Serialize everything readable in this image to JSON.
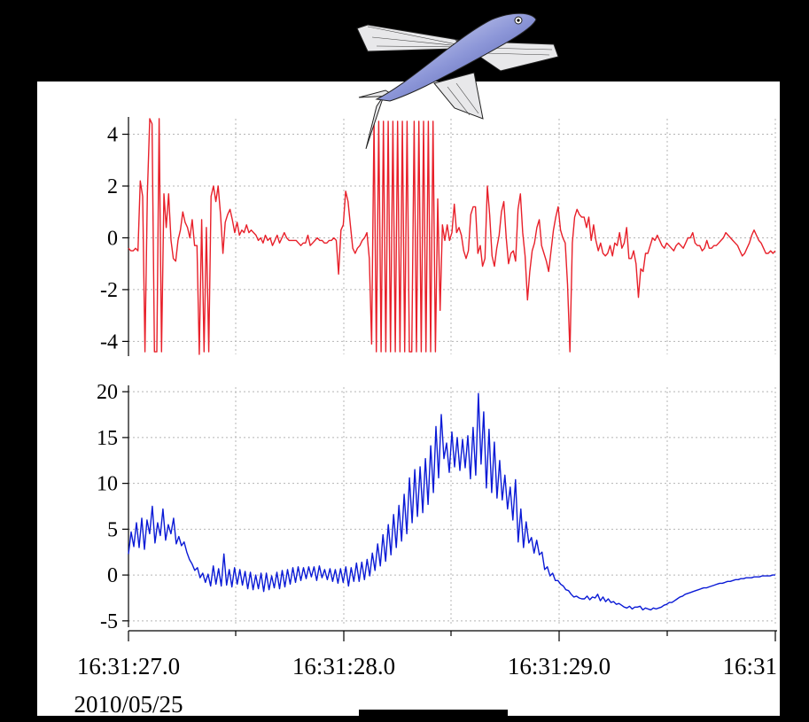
{
  "chart_data": [
    {
      "type": "line",
      "ylim": [
        -4.5,
        4.6
      ],
      "yticks": [
        "4",
        "2",
        "0",
        "-2",
        "-4"
      ],
      "ytick_values": [
        4,
        2,
        0,
        -2,
        -4
      ],
      "grid": true,
      "color": "#e8202a",
      "series": [
        {
          "values": [
            -0.4,
            -0.5,
            -0.5,
            -0.4,
            -0.5,
            2.2,
            1.6,
            -4.4,
            1.7,
            4.6,
            4.4,
            -4.4,
            -4.4,
            4.6,
            -4.4,
            1.7,
            0.4,
            1.7,
            -0.1,
            -0.8,
            -0.9,
            -0.1,
            0.3,
            1.0,
            0.6,
            0.4,
            0.0,
            0.7,
            -0.3,
            -0.3,
            -4.5,
            0.7,
            -4.4,
            0.4,
            -4.4,
            1.6,
            2.0,
            1.4,
            2.0,
            0.9,
            -0.6,
            0.6,
            0.9,
            1.1,
            0.7,
            0.2,
            0.6,
            0.1,
            0.3,
            0.2,
            0.5,
            0.2,
            0.3,
            0.2,
            0.1,
            -0.1,
            0.0,
            -0.2,
            0.1,
            -0.1,
            0.0,
            -0.3,
            -0.1,
            0.1,
            -0.2,
            0.0,
            0.2,
            0.0,
            -0.1,
            -0.1,
            -0.1,
            -0.1,
            -0.2,
            -0.3,
            -0.2,
            -0.2,
            0.1,
            -0.3,
            -0.2,
            -0.1,
            0.0,
            -0.1,
            -0.1,
            -0.2,
            -0.2,
            -0.1,
            -0.1,
            0.0,
            -0.1,
            -1.4,
            0.3,
            0.5,
            1.8,
            1.4,
            0.5,
            -0.4,
            -0.6,
            -0.4,
            -0.3,
            -0.1,
            0.0,
            0.2,
            -0.8,
            -4.1,
            4.5,
            -4.4,
            4.5,
            -4.4,
            4.5,
            -4.4,
            4.5,
            -4.4,
            4.5,
            -4.4,
            4.5,
            -4.4,
            4.5,
            -4.4,
            4.5,
            -4.4,
            -4.4,
            4.5,
            -4.4,
            4.5,
            -4.4,
            4.5,
            -4.4,
            4.5,
            -4.4,
            4.5,
            -4.4,
            1.5,
            -2.8,
            0.5,
            -0.1,
            0.5,
            -0.1,
            0.2,
            1.3,
            0.2,
            0.4,
            0.1,
            -0.5,
            -0.8,
            -0.5,
            0.9,
            1.2,
            1.2,
            -0.6,
            -0.3,
            -1.1,
            -0.8,
            2.0,
            0.9,
            -0.7,
            -1.1,
            -0.4,
            0.1,
            1.0,
            1.4,
            0.0,
            -1.0,
            -0.6,
            -0.5,
            -0.9,
            1.1,
            1.7,
            0.2,
            -0.7,
            -2.4,
            -1.3,
            -0.5,
            -0.2,
            0.4,
            0.7,
            -0.3,
            -0.6,
            -0.9,
            -1.3,
            -0.5,
            0.3,
            0.8,
            1.2,
            0.3,
            0.0,
            -0.2,
            -1.8,
            -4.4,
            -0.2,
            0.8,
            1.1,
            0.9,
            0.8,
            0.8,
            0.4,
            0.8,
            -0.1,
            0.5,
            -0.1,
            -0.5,
            -0.2,
            -0.6,
            -0.7,
            -0.6,
            -0.3,
            -0.7,
            -0.2,
            -0.3,
            0.2,
            -0.4,
            -0.2,
            0.4,
            -0.8,
            -0.8,
            -0.5,
            -1.0,
            -2.3,
            -1.2,
            -1.3,
            -0.6,
            -0.6,
            -0.3,
            0.0,
            -0.1,
            0.1,
            -0.1,
            -0.3,
            -0.4,
            -0.2,
            -0.3,
            -0.4,
            -0.5,
            -0.3,
            -0.2,
            -0.3,
            -0.4,
            -0.2,
            0.0,
            0.0,
            0.2,
            -0.2,
            -0.3,
            -0.3,
            -0.5,
            -0.4,
            -0.1,
            -0.4,
            -0.4,
            -0.3,
            -0.3,
            -0.2,
            -0.1,
            0.0,
            0.2,
            0.1,
            0.0,
            -0.1,
            -0.2,
            -0.3,
            -0.5,
            -0.7,
            -0.6,
            -0.4,
            -0.2,
            0.1,
            0.3,
            0.1,
            -0.1,
            -0.2,
            -0.4,
            -0.6,
            -0.6,
            -0.5,
            -0.6,
            -0.5
          ]
        }
      ]
    },
    {
      "type": "line",
      "ylim": [
        -5.5,
        20.5
      ],
      "yticks": [
        "20",
        "15",
        "10",
        "5",
        "0",
        "-5"
      ],
      "ytick_values": [
        20,
        15,
        10,
        5,
        0,
        -5
      ],
      "grid": true,
      "color": "#0a1ad6",
      "xticks": [
        "16:31:27.0",
        "16:31:28.0",
        "16:31:29.0",
        "16:31"
      ],
      "xtick_values": [
        0,
        1,
        2,
        3
      ],
      "xlim": [
        0,
        3
      ],
      "x_sublabel": "2010/05/25",
      "series": [
        {
          "values": [
            2.3,
            4.7,
            3.1,
            5.7,
            3.0,
            6.2,
            2.8,
            6.0,
            4.5,
            7.5,
            3.5,
            5.7,
            4.3,
            7.2,
            3.8,
            5.5,
            4.5,
            6.2,
            3.4,
            4.2,
            3.2,
            3.6,
            2.5,
            1.7,
            1.2,
            0.5,
            0.8,
            -0.3,
            0.2,
            -0.8,
            0.1,
            -1.2,
            1.0,
            -1.0,
            0.7,
            -1.2,
            2.3,
            -1.1,
            0.6,
            -1.3,
            0.8,
            -1.0,
            0.6,
            -1.1,
            0.4,
            -1.5,
            0.3,
            -1.6,
            0.0,
            -1.5,
            0.2,
            -1.8,
            0.2,
            -1.6,
            -0.1,
            -1.4,
            0.3,
            -1.5,
            0.5,
            -1.3,
            0.6,
            -1.0,
            0.8,
            -0.8,
            0.9,
            -0.6,
            0.8,
            -0.4,
            0.9,
            -0.2,
            0.9,
            -0.6,
            1.0,
            -0.3,
            0.6,
            -0.5,
            0.7,
            -0.7,
            0.6,
            -0.9,
            0.7,
            -0.8,
            0.9,
            -1.2,
            0.8,
            -0.7,
            1.3,
            -0.7,
            1.4,
            -0.5,
            1.7,
            -0.1,
            2.4,
            0.5,
            3.4,
            1.0,
            4.4,
            1.5,
            5.5,
            2.2,
            6.6,
            3.0,
            7.6,
            3.7,
            8.8,
            4.5,
            10.6,
            5.7,
            11.5,
            6.4,
            11.8,
            6.8,
            12.7,
            7.7,
            14.1,
            9.0,
            16.2,
            10.6,
            17.5,
            12.7,
            14.4,
            11.2,
            15.6,
            11.8,
            15.0,
            11.4,
            14.8,
            11.7,
            15.2,
            10.5,
            16.1,
            10.9,
            19.8,
            12.1,
            17.8,
            9.5,
            15.9,
            9.0,
            14.5,
            8.4,
            12.5,
            8.2,
            10.9,
            7.2,
            9.6,
            6.0,
            10.4,
            3.6,
            7.2,
            3.0,
            5.8,
            3.5,
            4.1,
            2.4,
            3.8,
            2.2,
            2.5,
            0.6,
            0.9,
            -0.1,
            0.2,
            -0.6,
            -0.6,
            -1.0,
            -1.2,
            -1.6,
            -1.7,
            -2.1,
            -2.4,
            -2.3,
            -2.5,
            -2.6,
            -2.6,
            -2.3,
            -2.7,
            -2.4,
            -2.5,
            -2.1,
            -2.8,
            -2.4,
            -2.9,
            -2.6,
            -3.0,
            -2.9,
            -3.2,
            -3.1,
            -3.3,
            -3.5,
            -3.6,
            -3.4,
            -3.7,
            -3.5,
            -3.5,
            -3.4,
            -3.8,
            -3.6,
            -3.7,
            -3.8,
            -3.6,
            -3.7,
            -3.6,
            -3.5,
            -3.3,
            -3.2,
            -3.0,
            -3.0,
            -2.8,
            -2.6,
            -2.4,
            -2.3,
            -2.1,
            -2.0,
            -1.9,
            -1.8,
            -1.7,
            -1.6,
            -1.5,
            -1.4,
            -1.4,
            -1.3,
            -1.2,
            -1.1,
            -1.0,
            -0.9,
            -0.9,
            -0.8,
            -0.7,
            -0.7,
            -0.6,
            -0.5,
            -0.5,
            -0.4,
            -0.4,
            -0.3,
            -0.3,
            -0.3,
            -0.2,
            -0.2,
            -0.2,
            -0.1,
            -0.1,
            -0.1,
            -0.1,
            0.0,
            0.0
          ]
        }
      ]
    }
  ]
}
